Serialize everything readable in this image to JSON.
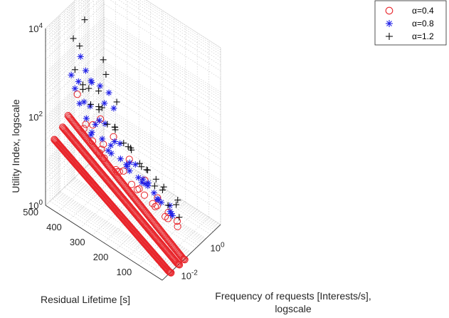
{
  "chart_data": {
    "type": "scatter3d",
    "x_axis": {
      "label": "Frequency of requests [Interests/s],",
      "label_line2": "logscale",
      "scale": "log",
      "ticks": [
        {
          "value": 0.01,
          "base": "10",
          "exp": "-2"
        },
        {
          "value": 1,
          "base": "10",
          "exp": "0"
        }
      ],
      "range": [
        0.001,
        10
      ]
    },
    "y_axis": {
      "label": "Residual Lifetime [s]",
      "scale": "linear",
      "ticks": [
        {
          "value": 100,
          "label": "100"
        },
        {
          "value": 200,
          "label": "200"
        },
        {
          "value": 300,
          "label": "300"
        },
        {
          "value": 400,
          "label": "400"
        },
        {
          "value": 500,
          "label": "500"
        }
      ],
      "range": [
        0,
        500
      ]
    },
    "z_axis": {
      "label": "Utility Index, logscale",
      "scale": "log",
      "ticks": [
        {
          "value": 1,
          "base": "10",
          "exp": "0"
        },
        {
          "value": 100,
          "base": "10",
          "exp": "2"
        },
        {
          "value": 10000,
          "base": "10",
          "exp": "4"
        }
      ],
      "range": [
        1,
        10000
      ]
    },
    "grid": true,
    "legend": {
      "placement": "top-right",
      "entries": [
        {
          "label": "α=0.4",
          "marker": "circle",
          "color": "#e8242a"
        },
        {
          "label": "α=0.8",
          "marker": "asterisk",
          "color": "#2020e8"
        },
        {
          "label": "α=1.2",
          "marker": "plus",
          "color": "#111111"
        }
      ]
    },
    "series": [
      {
        "name": "α=0.4",
        "marker": "circle",
        "color": "#e8242a",
        "note_curves": "dense curves: residual lifetime 0-500 s at fixed request frequency",
        "curves": [
          {
            "x": 0.004,
            "z_end": 0.9,
            "z_start": 20,
            "n": 180
          },
          {
            "x": 0.015,
            "z_end": 0.9,
            "z_start": 25,
            "n": 170
          },
          {
            "x": 0.035,
            "z_end": 0.9,
            "z_start": 35,
            "n": 150
          }
        ],
        "points": [
          {
            "x": 0.06,
            "y": 320,
            "z": 40
          },
          {
            "x": 0.08,
            "y": 260,
            "z": 18
          },
          {
            "x": 0.1,
            "y": 200,
            "z": 9
          },
          {
            "x": 0.12,
            "y": 150,
            "z": 5
          },
          {
            "x": 0.15,
            "y": 110,
            "z": 3
          },
          {
            "x": 0.2,
            "y": 80,
            "z": 2.2
          },
          {
            "x": 0.09,
            "y": 420,
            "z": 30
          },
          {
            "x": 0.11,
            "y": 380,
            "z": 14
          },
          {
            "x": 0.14,
            "y": 300,
            "z": 6
          },
          {
            "x": 0.18,
            "y": 240,
            "z": 3.5
          },
          {
            "x": 0.25,
            "y": 180,
            "z": 2
          },
          {
            "x": 0.3,
            "y": 130,
            "z": 1.5
          },
          {
            "x": 0.13,
            "y": 460,
            "z": 20
          },
          {
            "x": 0.17,
            "y": 400,
            "z": 8
          },
          {
            "x": 0.22,
            "y": 330,
            "z": 4
          },
          {
            "x": 0.28,
            "y": 260,
            "z": 2.5
          },
          {
            "x": 0.35,
            "y": 200,
            "z": 1.8
          },
          {
            "x": 0.4,
            "y": 150,
            "z": 1.3
          },
          {
            "x": 0.45,
            "y": 100,
            "z": 1.1
          },
          {
            "x": 0.05,
            "y": 470,
            "z": 120
          },
          {
            "x": 0.07,
            "y": 380,
            "z": 60
          },
          {
            "x": 0.2,
            "y": 480,
            "z": 12
          },
          {
            "x": 0.26,
            "y": 420,
            "z": 5
          },
          {
            "x": 0.33,
            "y": 350,
            "z": 3
          },
          {
            "x": 0.5,
            "y": 300,
            "z": 2
          },
          {
            "x": 0.6,
            "y": 250,
            "z": 1.6
          },
          {
            "x": 0.7,
            "y": 200,
            "z": 1.3
          },
          {
            "x": 0.38,
            "y": 460,
            "z": 6
          },
          {
            "x": 0.55,
            "y": 420,
            "z": 3
          },
          {
            "x": 0.8,
            "y": 380,
            "z": 2
          }
        ]
      },
      {
        "name": "α=0.8",
        "marker": "asterisk",
        "color": "#2020e8",
        "points": [
          {
            "x": 0.05,
            "y": 480,
            "z": 150
          },
          {
            "x": 0.06,
            "y": 420,
            "z": 90
          },
          {
            "x": 0.07,
            "y": 360,
            "z": 55
          },
          {
            "x": 0.08,
            "y": 300,
            "z": 30
          },
          {
            "x": 0.1,
            "y": 240,
            "z": 15
          },
          {
            "x": 0.12,
            "y": 190,
            "z": 8
          },
          {
            "x": 0.15,
            "y": 140,
            "z": 4
          },
          {
            "x": 0.2,
            "y": 100,
            "z": 2.5
          },
          {
            "x": 0.1,
            "y": 460,
            "z": 70
          },
          {
            "x": 0.12,
            "y": 400,
            "z": 40
          },
          {
            "x": 0.15,
            "y": 340,
            "z": 20
          },
          {
            "x": 0.18,
            "y": 280,
            "z": 10
          },
          {
            "x": 0.22,
            "y": 220,
            "z": 5
          },
          {
            "x": 0.28,
            "y": 170,
            "z": 3
          },
          {
            "x": 0.35,
            "y": 120,
            "z": 2
          },
          {
            "x": 0.15,
            "y": 490,
            "z": 45
          },
          {
            "x": 0.2,
            "y": 430,
            "z": 22
          },
          {
            "x": 0.25,
            "y": 370,
            "z": 11
          },
          {
            "x": 0.32,
            "y": 310,
            "z": 6
          },
          {
            "x": 0.4,
            "y": 250,
            "z": 3.5
          },
          {
            "x": 0.5,
            "y": 190,
            "z": 2.2
          },
          {
            "x": 0.6,
            "y": 140,
            "z": 1.6
          },
          {
            "x": 0.3,
            "y": 480,
            "z": 18
          },
          {
            "x": 0.4,
            "y": 420,
            "z": 9
          },
          {
            "x": 0.55,
            "y": 350,
            "z": 5
          },
          {
            "x": 0.7,
            "y": 280,
            "z": 3
          },
          {
            "x": 0.9,
            "y": 220,
            "z": 2
          },
          {
            "x": 1.2,
            "y": 160,
            "z": 1.5
          },
          {
            "x": 0.5,
            "y": 470,
            "z": 8
          },
          {
            "x": 0.8,
            "y": 400,
            "z": 4
          },
          {
            "x": 1.1,
            "y": 330,
            "z": 2.5
          },
          {
            "x": 1.5,
            "y": 260,
            "z": 1.8
          },
          {
            "x": 0.9,
            "y": 490,
            "z": 5
          },
          {
            "x": 1.5,
            "y": 430,
            "z": 3
          },
          {
            "x": 2.2,
            "y": 360,
            "z": 2
          },
          {
            "x": 3.0,
            "y": 300,
            "z": 1.5
          },
          {
            "x": 0.04,
            "y": 490,
            "z": 300
          },
          {
            "x": 0.06,
            "y": 470,
            "z": 220
          },
          {
            "x": 0.09,
            "y": 450,
            "z": 400
          },
          {
            "x": 0.12,
            "y": 480,
            "z": 600
          },
          {
            "x": 0.3,
            "y": 460,
            "z": 150
          },
          {
            "x": 0.7,
            "y": 480,
            "z": 90
          },
          {
            "x": 1.8,
            "y": 470,
            "z": 60
          },
          {
            "x": 3.5,
            "y": 450,
            "z": 40
          },
          {
            "x": 2.5,
            "y": 420,
            "z": 25
          },
          {
            "x": 1.2,
            "y": 440,
            "z": 35
          }
        ]
      },
      {
        "name": "α=1.2",
        "marker": "plus",
        "color": "#111111",
        "points": [
          {
            "x": 0.05,
            "y": 480,
            "z": 400
          },
          {
            "x": 0.07,
            "y": 430,
            "z": 200
          },
          {
            "x": 0.09,
            "y": 380,
            "z": 100
          },
          {
            "x": 0.11,
            "y": 330,
            "z": 50
          },
          {
            "x": 0.14,
            "y": 280,
            "z": 25
          },
          {
            "x": 0.18,
            "y": 230,
            "z": 12
          },
          {
            "x": 0.23,
            "y": 180,
            "z": 6
          },
          {
            "x": 0.3,
            "y": 130,
            "z": 3
          },
          {
            "x": 0.4,
            "y": 90,
            "z": 2
          },
          {
            "x": 0.12,
            "y": 470,
            "z": 150
          },
          {
            "x": 0.16,
            "y": 410,
            "z": 70
          },
          {
            "x": 0.22,
            "y": 350,
            "z": 35
          },
          {
            "x": 0.3,
            "y": 290,
            "z": 17
          },
          {
            "x": 0.4,
            "y": 230,
            "z": 8
          },
          {
            "x": 0.55,
            "y": 170,
            "z": 4
          },
          {
            "x": 0.75,
            "y": 120,
            "z": 2.5
          },
          {
            "x": 0.25,
            "y": 490,
            "z": 80
          },
          {
            "x": 0.35,
            "y": 430,
            "z": 40
          },
          {
            "x": 0.5,
            "y": 370,
            "z": 20
          },
          {
            "x": 0.7,
            "y": 310,
            "z": 10
          },
          {
            "x": 1.0,
            "y": 250,
            "z": 5
          },
          {
            "x": 1.4,
            "y": 190,
            "z": 3
          },
          {
            "x": 2.0,
            "y": 140,
            "z": 2
          },
          {
            "x": 0.6,
            "y": 480,
            "z": 30
          },
          {
            "x": 0.9,
            "y": 420,
            "z": 15
          },
          {
            "x": 1.3,
            "y": 360,
            "z": 8
          },
          {
            "x": 1.8,
            "y": 300,
            "z": 4
          },
          {
            "x": 2.6,
            "y": 240,
            "z": 2.5
          },
          {
            "x": 0.08,
            "y": 500,
            "z": 1500
          },
          {
            "x": 0.15,
            "y": 490,
            "z": 900
          },
          {
            "x": 0.4,
            "y": 495,
            "z": 2500
          },
          {
            "x": 1.5,
            "y": 490,
            "z": 6000
          },
          {
            "x": 3.0,
            "y": 470,
            "z": 200
          },
          {
            "x": 2.2,
            "y": 450,
            "z": 120
          },
          {
            "x": 4.0,
            "y": 420,
            "z": 30
          },
          {
            "x": 1.0,
            "y": 460,
            "z": 60
          }
        ]
      }
    ]
  }
}
